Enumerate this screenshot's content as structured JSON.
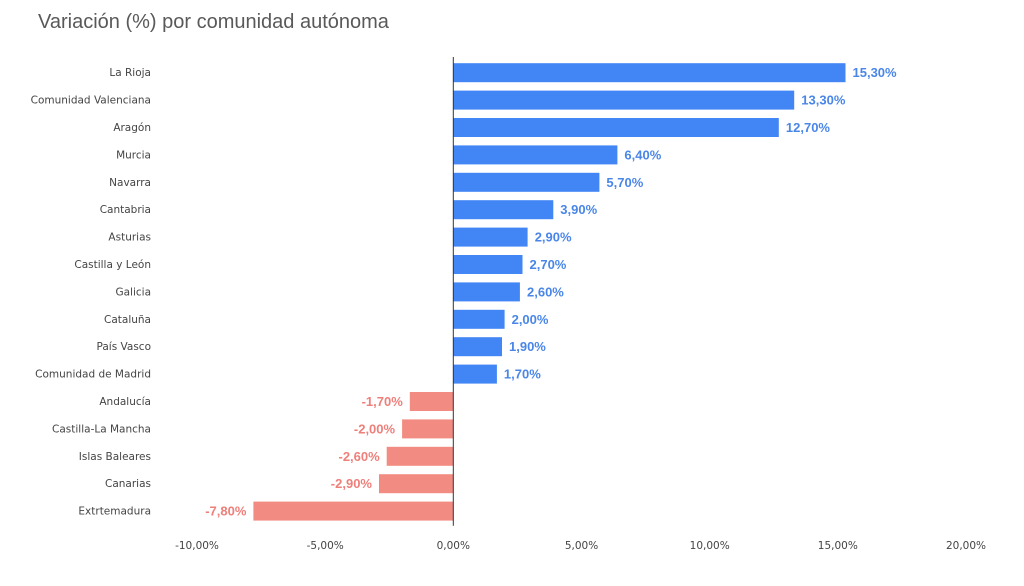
{
  "chart_data": {
    "type": "bar",
    "orientation": "horizontal",
    "title": "Variación (%) por comunidad autónoma",
    "categories": [
      "La Rioja",
      "Comunidad Valenciana",
      "Aragón",
      "Murcia",
      "Navarra",
      "Cantabria",
      "Asturias",
      "Castilla y León",
      "Galicia",
      "Cataluña",
      "País Vasco",
      "Comunidad de Madrid",
      "Andalucía",
      "Castilla-La Mancha",
      "Islas Baleares",
      "Canarias",
      "Extrtemadura"
    ],
    "values": [
      15.3,
      13.3,
      12.7,
      6.4,
      5.7,
      3.9,
      2.9,
      2.7,
      2.6,
      2.0,
      1.9,
      1.7,
      -1.7,
      -2.0,
      -2.6,
      -2.9,
      -7.8
    ],
    "value_labels": [
      "15,30%",
      "13,30%",
      "12,70%",
      "6,40%",
      "5,70%",
      "3,90%",
      "2,90%",
      "2,70%",
      "2,60%",
      "2,00%",
      "1,90%",
      "1,70%",
      "-1,70%",
      "-2,00%",
      "-2,60%",
      "-2,90%",
      "-7,80%"
    ],
    "xlim": [
      -10,
      20
    ],
    "x_ticks": [
      -10,
      -5,
      0,
      5,
      10,
      15,
      20
    ],
    "x_tick_labels": [
      "-10,00%",
      "-5,00%",
      "0,00%",
      "5,00%",
      "10,00%",
      "15,00%",
      "20,00%"
    ],
    "xlabel": "",
    "ylabel": "",
    "grid": false,
    "colors": {
      "positive": "#4285F4",
      "negative": "#F28B82",
      "positive_label": "#4A86E8",
      "negative_label": "#EE7F7A",
      "axis": "#333333"
    }
  }
}
